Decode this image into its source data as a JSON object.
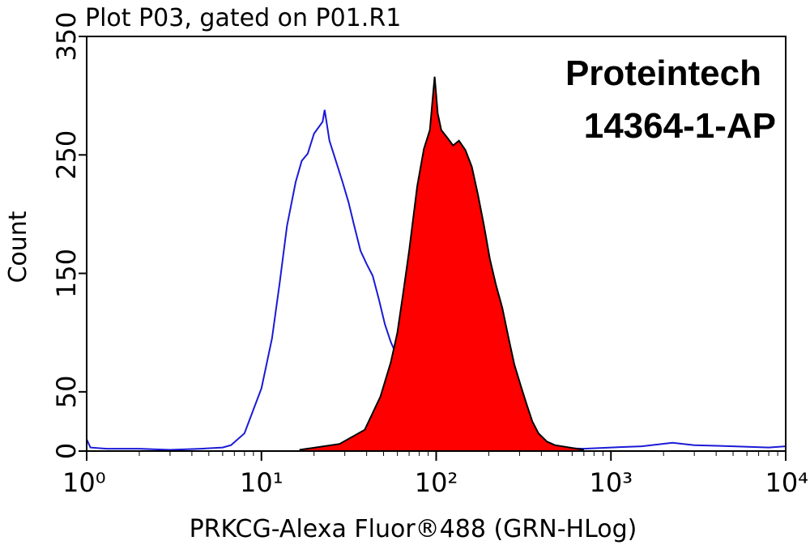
{
  "chart_data": {
    "type": "histogram-overlay",
    "title": "Plot P03, gated on P01.R1",
    "annotations": [
      "Proteintech",
      "14364-1-AP"
    ],
    "x_label": "PRKCG-Alexa Fluor®488 (GRN-HLog)",
    "y_label": "Count",
    "x_scale": "log",
    "xlim": [
      1,
      10000
    ],
    "xticks": [
      {
        "value": 1,
        "label": "10⁰"
      },
      {
        "value": 10,
        "label": "10¹"
      },
      {
        "value": 100,
        "label": "10²"
      },
      {
        "value": 1000,
        "label": "10³"
      },
      {
        "value": 10000,
        "label": "10⁴"
      }
    ],
    "ylim": [
      0,
      350
    ],
    "yticks": [
      0,
      50,
      150,
      250,
      350
    ],
    "series": [
      {
        "color": "#1a1ad6",
        "fill": false,
        "x": [
          1,
          1.05,
          1.3,
          2,
          3,
          4.5,
          6,
          6.7,
          8,
          10,
          11.5,
          12.7,
          14,
          15.7,
          17,
          18.4,
          20,
          22.4,
          23,
          24.5,
          26.8,
          29,
          31.5,
          34,
          36.9,
          40,
          43.3,
          47,
          50.9,
          55,
          59.7,
          65,
          70,
          76,
          82,
          90,
          101,
          112,
          125,
          160,
          250,
          400,
          700,
          1000,
          1500,
          2250,
          3000,
          5000,
          8000,
          10000
        ],
        "values": [
          10,
          3,
          2,
          2,
          1,
          2,
          3,
          5,
          15,
          53,
          95,
          141,
          190,
          227,
          245,
          251,
          268,
          278,
          288,
          262,
          244,
          228,
          210,
          190,
          169,
          158,
          148,
          128,
          107,
          92,
          80,
          62,
          46,
          36,
          29,
          17,
          8,
          5,
          3,
          2,
          2,
          3,
          2,
          3,
          4,
          7,
          5,
          4,
          3,
          4
        ]
      },
      {
        "color": "#ff0000",
        "fill": true,
        "x": [
          16.5,
          28,
          39,
          48,
          55,
          60,
          65,
          70,
          78,
          85,
          92,
          98,
          102,
          107,
          115,
          125,
          135,
          147,
          160,
          173,
          188,
          203,
          220,
          239,
          260,
          280,
          305,
          330,
          355,
          385,
          430,
          478,
          700
        ],
        "values": [
          1,
          6,
          18,
          46,
          75,
          100,
          135,
          169,
          224,
          255,
          271,
          316,
          285,
          271,
          265,
          258,
          262,
          254,
          240,
          217,
          190,
          162,
          140,
          121,
          95,
          73,
          55,
          39,
          25,
          15,
          8,
          5,
          1
        ]
      }
    ]
  }
}
